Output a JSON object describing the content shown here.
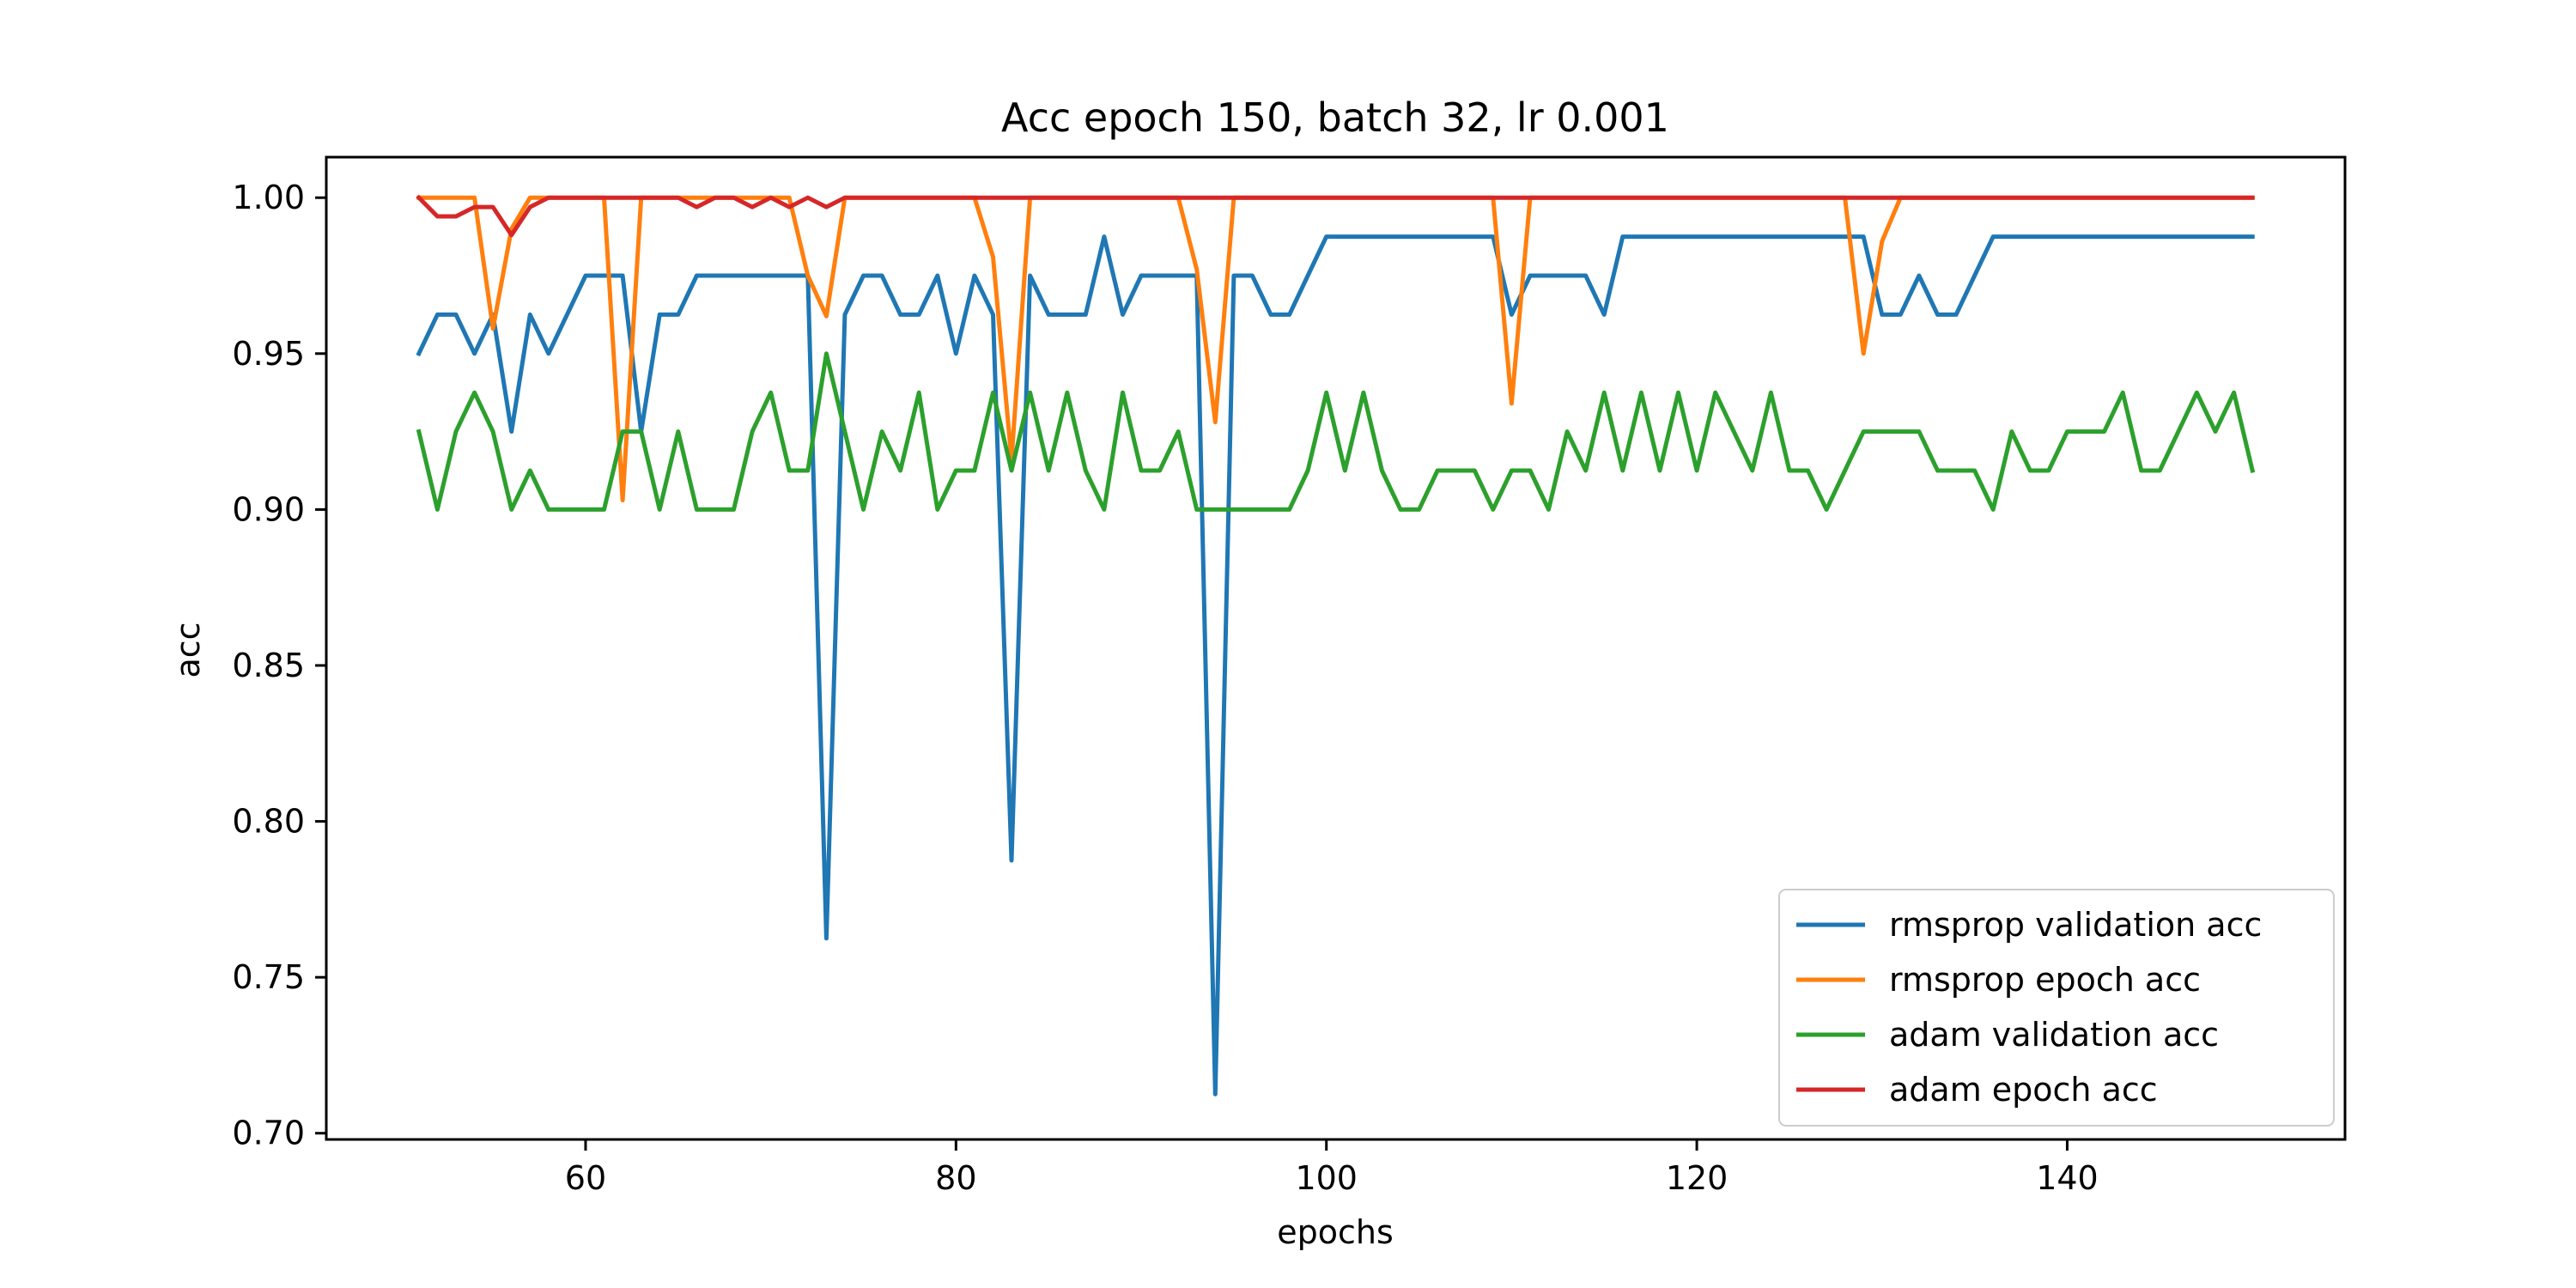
{
  "chart_data": {
    "type": "line",
    "title": "Acc epoch 150, batch 32, lr 0.001",
    "xlabel": "epochs",
    "ylabel": "acc",
    "xlim": [
      46,
      155
    ],
    "ylim": [
      0.698,
      1.013
    ],
    "xticks": [
      60,
      80,
      100,
      120,
      140
    ],
    "yticks": [
      0.7,
      0.75,
      0.8,
      0.85,
      0.9,
      0.95,
      1.0
    ],
    "ytick_labels": [
      "0.70",
      "0.75",
      "0.80",
      "0.85",
      "0.90",
      "0.95",
      "1.00"
    ],
    "xtick_labels": [
      "60",
      "80",
      "100",
      "120",
      "140"
    ],
    "grid": false,
    "legend_position": "lower-right",
    "x": [
      51,
      52,
      53,
      54,
      55,
      56,
      57,
      58,
      59,
      60,
      61,
      62,
      63,
      64,
      65,
      66,
      67,
      68,
      69,
      70,
      71,
      72,
      73,
      74,
      75,
      76,
      77,
      78,
      79,
      80,
      81,
      82,
      83,
      84,
      85,
      86,
      87,
      88,
      89,
      90,
      91,
      92,
      93,
      94,
      95,
      96,
      97,
      98,
      99,
      100,
      101,
      102,
      103,
      104,
      105,
      106,
      107,
      108,
      109,
      110,
      111,
      112,
      113,
      114,
      115,
      116,
      117,
      118,
      119,
      120,
      121,
      122,
      123,
      124,
      125,
      126,
      127,
      128,
      129,
      130,
      131,
      132,
      133,
      134,
      135,
      136,
      137,
      138,
      139,
      140,
      141,
      142,
      143,
      144,
      145,
      146,
      147,
      148,
      149,
      150
    ],
    "series": [
      {
        "name": "rmsprop validation acc",
        "color": "#1f77b4",
        "values": [
          0.95,
          0.9625,
          0.9625,
          0.95,
          0.9625,
          0.925,
          0.9625,
          0.95,
          0.9625,
          0.975,
          0.975,
          0.975,
          0.925,
          0.9625,
          0.9625,
          0.975,
          0.975,
          0.975,
          0.975,
          0.975,
          0.975,
          0.975,
          0.7625,
          0.9625,
          0.975,
          0.975,
          0.9625,
          0.9625,
          0.975,
          0.95,
          0.975,
          0.9625,
          0.7875,
          0.975,
          0.9625,
          0.9625,
          0.9625,
          0.9875,
          0.9625,
          0.975,
          0.975,
          0.975,
          0.975,
          0.7125,
          0.975,
          0.975,
          0.9625,
          0.9625,
          0.975,
          0.9875,
          0.9875,
          0.9875,
          0.9875,
          0.9875,
          0.9875,
          0.9875,
          0.9875,
          0.9875,
          0.9875,
          0.9625,
          0.975,
          0.975,
          0.975,
          0.975,
          0.9625,
          0.9875,
          0.9875,
          0.9875,
          0.9875,
          0.9875,
          0.9875,
          0.9875,
          0.9875,
          0.9875,
          0.9875,
          0.9875,
          0.9875,
          0.9875,
          0.9875,
          0.9625,
          0.9625,
          0.975,
          0.9625,
          0.9625,
          0.975,
          0.9875,
          0.9875,
          0.9875,
          0.9875,
          0.9875,
          0.9875,
          0.9875,
          0.9875,
          0.9875,
          0.9875,
          0.9875,
          0.9875,
          0.9875,
          0.9875,
          0.9875
        ]
      },
      {
        "name": "rmsprop epoch acc",
        "color": "#ff7f0e",
        "values": [
          1.0,
          1.0,
          1.0,
          1.0,
          0.958,
          0.99,
          1.0,
          1.0,
          1.0,
          1.0,
          1.0,
          0.903,
          1.0,
          1.0,
          1.0,
          1.0,
          1.0,
          1.0,
          1.0,
          1.0,
          1.0,
          0.975,
          0.962,
          1.0,
          1.0,
          1.0,
          1.0,
          1.0,
          1.0,
          1.0,
          1.0,
          0.981,
          0.916,
          1.0,
          1.0,
          1.0,
          1.0,
          1.0,
          1.0,
          1.0,
          1.0,
          1.0,
          0.977,
          0.928,
          1.0,
          1.0,
          1.0,
          1.0,
          1.0,
          1.0,
          1.0,
          1.0,
          1.0,
          1.0,
          1.0,
          1.0,
          1.0,
          1.0,
          1.0,
          0.934,
          1.0,
          1.0,
          1.0,
          1.0,
          1.0,
          1.0,
          1.0,
          1.0,
          1.0,
          1.0,
          1.0,
          1.0,
          1.0,
          1.0,
          1.0,
          1.0,
          1.0,
          1.0,
          0.95,
          0.986,
          1.0,
          1.0,
          1.0,
          1.0,
          1.0,
          1.0,
          1.0,
          1.0,
          1.0,
          1.0,
          1.0,
          1.0,
          1.0,
          1.0,
          1.0,
          1.0,
          1.0,
          1.0,
          1.0,
          1.0
        ]
      },
      {
        "name": "adam validation acc",
        "color": "#2ca02c",
        "values": [
          0.925,
          0.9,
          0.925,
          0.9375,
          0.925,
          0.9,
          0.9125,
          0.9,
          0.9,
          0.9,
          0.9,
          0.925,
          0.925,
          0.9,
          0.925,
          0.9,
          0.9,
          0.9,
          0.925,
          0.9375,
          0.9125,
          0.9125,
          0.95,
          0.925,
          0.9,
          0.925,
          0.9125,
          0.9375,
          0.9,
          0.9125,
          0.9125,
          0.9375,
          0.9125,
          0.9375,
          0.9125,
          0.9375,
          0.9125,
          0.9,
          0.9375,
          0.9125,
          0.9125,
          0.925,
          0.9,
          0.9,
          0.9,
          0.9,
          0.9,
          0.9,
          0.9125,
          0.9375,
          0.9125,
          0.9375,
          0.9125,
          0.9,
          0.9,
          0.9125,
          0.9125,
          0.9125,
          0.9,
          0.9125,
          0.9125,
          0.9,
          0.925,
          0.9125,
          0.9375,
          0.9125,
          0.9375,
          0.9125,
          0.9375,
          0.9125,
          0.9375,
          0.925,
          0.9125,
          0.9375,
          0.9125,
          0.9125,
          0.9,
          0.9125,
          0.925,
          0.925,
          0.925,
          0.925,
          0.9125,
          0.9125,
          0.9125,
          0.9,
          0.925,
          0.9125,
          0.9125,
          0.925,
          0.925,
          0.925,
          0.9375,
          0.9125,
          0.9125,
          0.925,
          0.9375,
          0.925,
          0.9375,
          0.9125
        ]
      },
      {
        "name": "adam epoch acc",
        "color": "#d62728",
        "values": [
          1.0,
          0.994,
          0.994,
          0.997,
          0.997,
          0.988,
          0.997,
          1.0,
          1.0,
          1.0,
          1.0,
          1.0,
          1.0,
          1.0,
          1.0,
          0.997,
          1.0,
          1.0,
          0.997,
          1.0,
          0.997,
          1.0,
          0.997,
          1.0,
          1.0,
          1.0,
          1.0,
          1.0,
          1.0,
          1.0,
          1.0,
          1.0,
          1.0,
          1.0,
          1.0,
          1.0,
          1.0,
          1.0,
          1.0,
          1.0,
          1.0,
          1.0,
          1.0,
          1.0,
          1.0,
          1.0,
          1.0,
          1.0,
          1.0,
          1.0,
          1.0,
          1.0,
          1.0,
          1.0,
          1.0,
          1.0,
          1.0,
          1.0,
          1.0,
          1.0,
          1.0,
          1.0,
          1.0,
          1.0,
          1.0,
          1.0,
          1.0,
          1.0,
          1.0,
          1.0,
          1.0,
          1.0,
          1.0,
          1.0,
          1.0,
          1.0,
          1.0,
          1.0,
          1.0,
          1.0,
          1.0,
          1.0,
          1.0,
          1.0,
          1.0,
          1.0,
          1.0,
          1.0,
          1.0,
          1.0,
          1.0,
          1.0,
          1.0,
          1.0,
          1.0,
          1.0,
          1.0,
          1.0,
          1.0,
          1.0
        ]
      }
    ]
  }
}
